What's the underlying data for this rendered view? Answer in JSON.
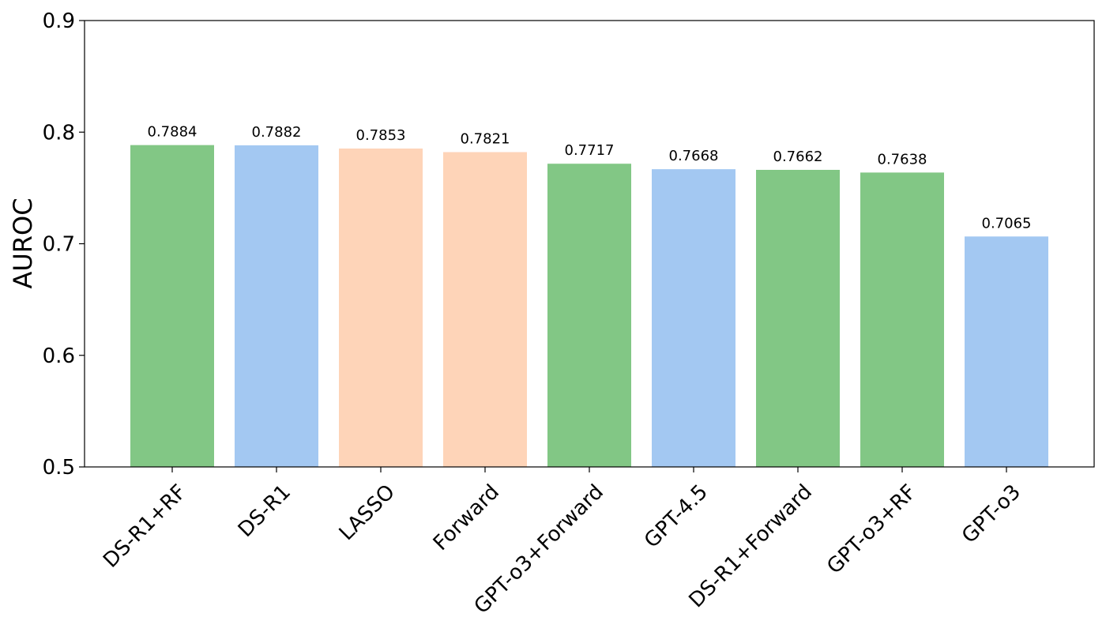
{
  "chart_data": {
    "type": "bar",
    "title": "",
    "xlabel": "",
    "ylabel": "AUROC",
    "ylim": [
      0.5,
      0.9
    ],
    "yticks": [
      "0.5",
      "0.6",
      "0.7",
      "0.8",
      "0.9"
    ],
    "grid": false,
    "categories": [
      "DS-R1+RF",
      "DS-R1",
      "LASSO",
      "Forward",
      "GPT-o3+Forward",
      "GPT-4.5",
      "DS-R1+Forward",
      "GPT-o3+RF",
      "GPT-o3"
    ],
    "values": [
      0.7884,
      0.7882,
      0.7853,
      0.7821,
      0.7717,
      0.7668,
      0.7662,
      0.7638,
      0.7065
    ],
    "value_labels": [
      "0.7884",
      "0.7882",
      "0.7853",
      "0.7821",
      "0.7717",
      "0.7668",
      "0.7662",
      "0.7638",
      "0.7065"
    ],
    "bar_colors": [
      "#82c785",
      "#a3c8f2",
      "#fed4b8",
      "#fed4b8",
      "#82c785",
      "#a3c8f2",
      "#82c785",
      "#82c785",
      "#a3c8f2"
    ]
  }
}
